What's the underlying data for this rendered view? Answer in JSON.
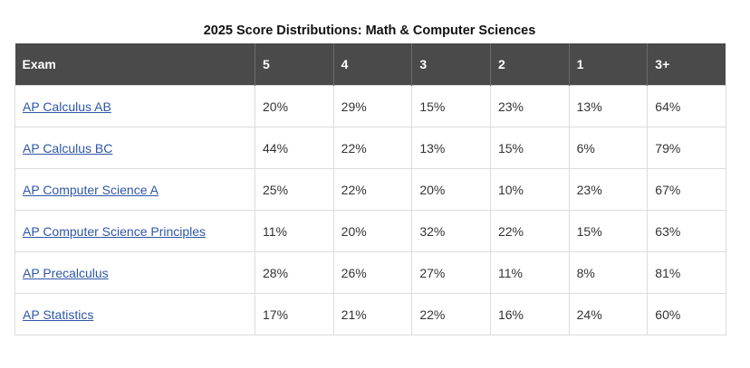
{
  "caption": "2025 Score Distributions: Math & Computer Sciences",
  "table": {
    "headers": [
      "Exam",
      "5",
      "4",
      "3",
      "2",
      "1",
      "3+"
    ],
    "rows": [
      {
        "exam": "AP Calculus AB",
        "values": [
          "20%",
          "29%",
          "15%",
          "23%",
          "13%",
          "64%"
        ]
      },
      {
        "exam": "AP Calculus BC",
        "values": [
          "44%",
          "22%",
          "13%",
          "15%",
          "6%",
          "79%"
        ]
      },
      {
        "exam": "AP Computer Science A",
        "values": [
          "25%",
          "22%",
          "20%",
          "10%",
          "23%",
          "67%"
        ]
      },
      {
        "exam": "AP Computer Science Principles",
        "values": [
          "11%",
          "20%",
          "32%",
          "22%",
          "15%",
          "63%"
        ]
      },
      {
        "exam": "AP Precalculus",
        "values": [
          "28%",
          "26%",
          "27%",
          "11%",
          "8%",
          "81%"
        ]
      },
      {
        "exam": "AP Statistics",
        "values": [
          "17%",
          "21%",
          "22%",
          "16%",
          "24%",
          "60%"
        ]
      }
    ]
  },
  "colors": {
    "header_bg": "#4a4a4a",
    "header_text": "#ffffff",
    "link": "#2f56a8",
    "border": "#dcdcdc"
  }
}
